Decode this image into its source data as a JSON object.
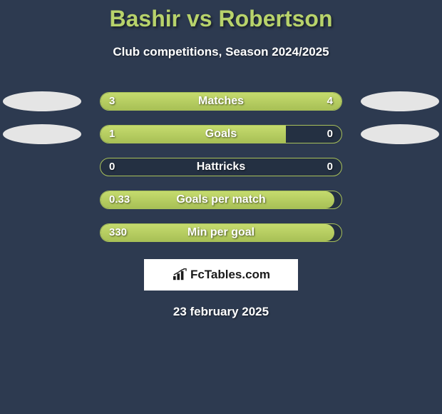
{
  "title": "Bashir vs Robertson",
  "subtitle": "Club competitions, Season 2024/2025",
  "date": "23 february 2025",
  "brand": "FcTables.com",
  "colors": {
    "background": "#2d3a50",
    "accent": "#b8d36b",
    "bar_fill_top": "#c5db6e",
    "bar_fill_bottom": "#a8c056",
    "track": "#243042",
    "oval": "#e5e5e5",
    "text": "#ffffff"
  },
  "stats": [
    {
      "label": "Matches",
      "left_value": "3",
      "right_value": "4",
      "left_pct": 40,
      "right_pct": 60,
      "show_ovals": true,
      "left_fill": true,
      "right_fill": true
    },
    {
      "label": "Goals",
      "left_value": "1",
      "right_value": "0",
      "left_pct": 77,
      "right_pct": 0,
      "show_ovals": true,
      "left_fill": true,
      "right_fill": false
    },
    {
      "label": "Hattricks",
      "left_value": "0",
      "right_value": "0",
      "left_pct": 0,
      "right_pct": 0,
      "show_ovals": false,
      "left_fill": false,
      "right_fill": false
    },
    {
      "label": "Goals per match",
      "left_value": "0.33",
      "right_value": "",
      "left_pct": 97,
      "right_pct": 0,
      "show_ovals": false,
      "left_fill": true,
      "right_fill": false
    },
    {
      "label": "Min per goal",
      "left_value": "330",
      "right_value": "",
      "left_pct": 97,
      "right_pct": 0,
      "show_ovals": false,
      "left_fill": true,
      "right_fill": false
    }
  ]
}
